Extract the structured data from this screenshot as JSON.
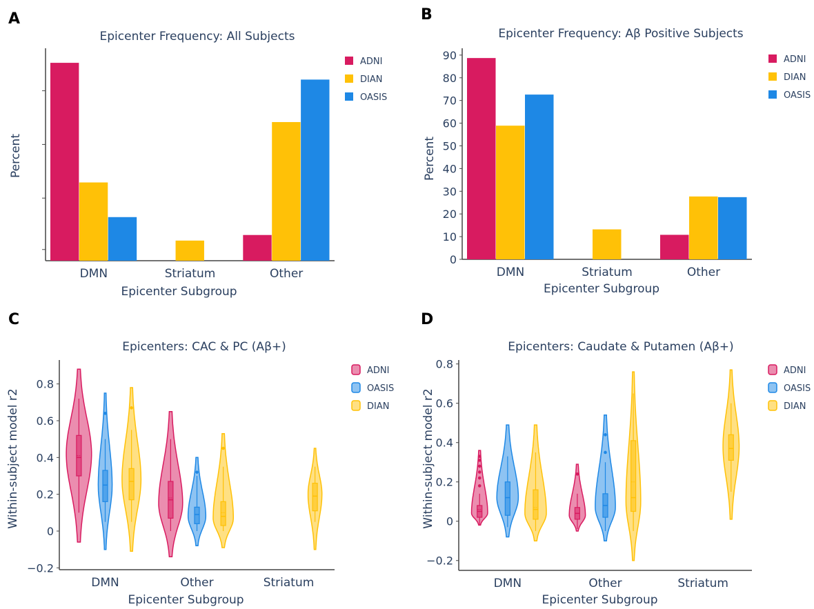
{
  "colors": {
    "ADNI": "#d81b60",
    "DIAN": "#ffc107",
    "OASIS": "#1e88e5"
  },
  "chart_data": [
    {
      "panel": "A",
      "type": "bar",
      "title": "Epicenter Frequency: All Subjects",
      "xlabel": "Epicenter Subgroup",
      "ylabel": "Percent",
      "categories": [
        "DMN",
        "Striatum",
        "Other"
      ],
      "yticks_shown": false,
      "ylim": [
        0,
        95
      ],
      "legend_position": "top-right",
      "series": [
        {
          "name": "ADNI",
          "color": "#d81b60",
          "values": [
            88.5,
            0,
            11.5
          ]
        },
        {
          "name": "DIAN",
          "color": "#ffc107",
          "values": [
            35,
            9,
            62
          ]
        },
        {
          "name": "OASIS",
          "color": "#1e88e5",
          "values": [
            19.5,
            0,
            81
          ]
        }
      ]
    },
    {
      "panel": "B",
      "type": "bar",
      "title": "Epicenter Frequency: Aβ Positive Subjects",
      "xlabel": "Epicenter Subgroup",
      "ylabel": "Percent",
      "categories": [
        "DMN",
        "Striatum",
        "Other"
      ],
      "yticks": [
        0,
        10,
        20,
        30,
        40,
        50,
        60,
        70,
        80,
        90
      ],
      "ylim": [
        0,
        93
      ],
      "legend_position": "top-right",
      "series": [
        {
          "name": "ADNI",
          "color": "#d81b60",
          "values": [
            88.7,
            0,
            10.8
          ]
        },
        {
          "name": "DIAN",
          "color": "#ffc107",
          "values": [
            58.9,
            13.2,
            27.7
          ]
        },
        {
          "name": "OASIS",
          "color": "#1e88e5",
          "values": [
            72.6,
            0,
            27.4
          ]
        }
      ]
    },
    {
      "panel": "C",
      "type": "violin",
      "title": "Epicenters: CAC & PC (Aβ+)",
      "xlabel": "Epicenter Subgroup",
      "ylabel": "Within-subject model r2",
      "categories": [
        "DMN",
        "Other",
        "Striatum"
      ],
      "yticks": [
        -0.2,
        0,
        0.2,
        0.4,
        0.6,
        0.8
      ],
      "ytick_labels": [
        "−0.2",
        "0",
        "0.2",
        "0.4",
        "0.6",
        "0.8"
      ],
      "ylim": [
        -0.21,
        0.93
      ],
      "legend_position": "top-right",
      "series": [
        {
          "name": "ADNI",
          "color": "#d81b60",
          "groups": [
            {
              "category": "DMN",
              "min": -0.06,
              "max": 0.88,
              "q1": 0.3,
              "median": 0.4,
              "q3": 0.52,
              "mean": 0.41,
              "whisker_low": 0.1,
              "whisker_high": 0.72,
              "peak": 0.42,
              "width": 1.0
            },
            {
              "category": "Other",
              "min": -0.14,
              "max": 0.65,
              "q1": 0.07,
              "median": 0.17,
              "q3": 0.27,
              "mean": 0.18,
              "whisker_low": 0.0,
              "whisker_high": 0.5,
              "peak": 0.15,
              "width": 0.95
            }
          ]
        },
        {
          "name": "OASIS",
          "color": "#1e88e5",
          "groups": [
            {
              "category": "DMN",
              "min": -0.1,
              "max": 0.75,
              "q1": 0.16,
              "median": 0.25,
              "q3": 0.33,
              "mean": 0.25,
              "whisker_low": 0.05,
              "whisker_high": 0.5,
              "peak": 0.25,
              "width": 0.55,
              "outliers": [
                0.64
              ]
            },
            {
              "category": "Other",
              "min": -0.08,
              "max": 0.4,
              "q1": 0.04,
              "median": 0.09,
              "q3": 0.13,
              "mean": 0.09,
              "whisker_low": 0.0,
              "whisker_high": 0.3,
              "peak": 0.08,
              "width": 0.7,
              "outliers": [
                0.32
              ]
            }
          ]
        },
        {
          "name": "DIAN",
          "color": "#ffc107",
          "groups": [
            {
              "category": "DMN",
              "min": -0.11,
              "max": 0.78,
              "q1": 0.17,
              "median": 0.27,
              "q3": 0.34,
              "mean": 0.27,
              "whisker_low": 0.05,
              "whisker_high": 0.55,
              "peak": 0.28,
              "width": 0.75,
              "outliers": [
                0.67
              ]
            },
            {
              "category": "Other",
              "min": -0.09,
              "max": 0.53,
              "q1": 0.03,
              "median": 0.08,
              "q3": 0.16,
              "mean": 0.1,
              "whisker_low": 0.0,
              "whisker_high": 0.35,
              "peak": 0.07,
              "width": 0.8,
              "outliers": [
                0.45
              ]
            },
            {
              "category": "Striatum",
              "min": -0.1,
              "max": 0.45,
              "q1": 0.11,
              "median": 0.19,
              "q3": 0.26,
              "mean": 0.19,
              "whisker_low": 0.05,
              "whisker_high": 0.35,
              "peak": 0.2,
              "width": 0.55
            }
          ]
        }
      ]
    },
    {
      "panel": "D",
      "type": "violin",
      "title": "Epicenters: Caudate & Putamen (Aβ+)",
      "xlabel": "Epicenter Subgroup",
      "ylabel": "Within-subject model r2",
      "categories": [
        "DMN",
        "Other",
        "Striatum"
      ],
      "yticks": [
        -0.2,
        0,
        0.2,
        0.4,
        0.6,
        0.8
      ],
      "ytick_labels": [
        "−0.2",
        "0",
        "0.2",
        "0.4",
        "0.6",
        "0.8"
      ],
      "ylim": [
        -0.25,
        0.82
      ],
      "legend_position": "top-right",
      "series": [
        {
          "name": "ADNI",
          "color": "#d81b60",
          "groups": [
            {
              "category": "DMN",
              "min": -0.02,
              "max": 0.36,
              "q1": 0.02,
              "median": 0.05,
              "q3": 0.08,
              "mean": 0.06,
              "whisker_low": -0.02,
              "whisker_high": 0.14,
              "peak": 0.04,
              "width": 0.6,
              "outliers": [
                0.18,
                0.22,
                0.25,
                0.28,
                0.31,
                0.33
              ]
            },
            {
              "category": "Other",
              "min": -0.05,
              "max": 0.29,
              "q1": 0.01,
              "median": 0.04,
              "q3": 0.07,
              "mean": 0.04,
              "whisker_low": -0.04,
              "whisker_high": 0.14,
              "peak": 0.03,
              "width": 0.6,
              "outliers": [
                0.24
              ]
            }
          ]
        },
        {
          "name": "OASIS",
          "color": "#1e88e5",
          "groups": [
            {
              "category": "DMN",
              "min": -0.08,
              "max": 0.49,
              "q1": 0.03,
              "median": 0.12,
              "q3": 0.2,
              "mean": 0.12,
              "whisker_low": -0.03,
              "whisker_high": 0.33,
              "peak": 0.12,
              "width": 0.8
            },
            {
              "category": "Other",
              "min": -0.1,
              "max": 0.54,
              "q1": 0.02,
              "median": 0.08,
              "q3": 0.14,
              "mean": 0.08,
              "whisker_low": -0.05,
              "whisker_high": 0.3,
              "peak": 0.07,
              "width": 0.75,
              "outliers": [
                0.35,
                0.44
              ]
            }
          ]
        },
        {
          "name": "DIAN",
          "color": "#ffc107",
          "groups": [
            {
              "category": "DMN",
              "min": -0.1,
              "max": 0.49,
              "q1": 0.01,
              "median": 0.06,
              "q3": 0.16,
              "mean": 0.07,
              "whisker_low": -0.05,
              "whisker_high": 0.35,
              "peak": 0.04,
              "width": 0.8
            },
            {
              "category": "Other",
              "min": -0.2,
              "max": 0.76,
              "q1": 0.05,
              "median": 0.12,
              "q3": 0.41,
              "mean": 0.2,
              "whisker_low": -0.05,
              "whisker_high": 0.65,
              "peak": 0.1,
              "width": 0.55
            },
            {
              "category": "Striatum",
              "min": 0.01,
              "max": 0.77,
              "q1": 0.31,
              "median": 0.37,
              "q3": 0.44,
              "mean": 0.37,
              "whisker_low": 0.15,
              "whisker_high": 0.6,
              "peak": 0.38,
              "width": 0.6
            }
          ]
        }
      ]
    }
  ]
}
